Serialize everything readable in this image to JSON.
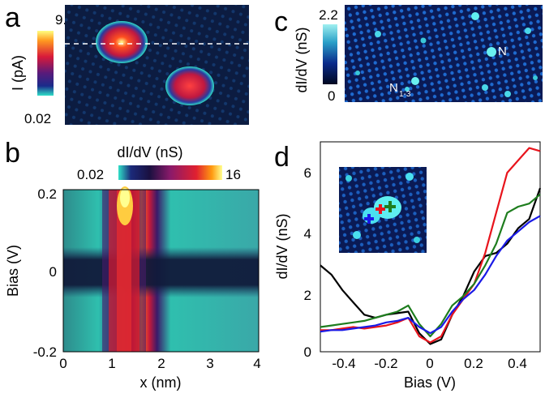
{
  "panels": {
    "a": {
      "label": "a",
      "colorbar": {
        "max": "9.1",
        "min": "0.02",
        "label": "I (pA)"
      }
    },
    "b": {
      "label": "b",
      "colorbar": {
        "title": "dI/dV (nS)",
        "min": "0.02",
        "max": "16"
      },
      "xlabel": "x (nm)",
      "ylabel": "Bias (V)",
      "xticks": [
        "0",
        "1",
        "2",
        "3",
        "4"
      ],
      "yticks": [
        "0.2",
        "0",
        "-0.2"
      ]
    },
    "c": {
      "label": "c",
      "colorbar": {
        "max": "2.2",
        "min": "0",
        "label": "dI/dV (nS)"
      },
      "annotations": {
        "n": "N",
        "n13": "N",
        "n13_sub": "1-3"
      }
    },
    "d": {
      "label": "d",
      "xlabel": "Bias (V)",
      "ylabel": "dI/dV (nS)",
      "xticks": [
        "-0.4",
        "-0.2",
        "0",
        "0.2",
        "0.4"
      ],
      "yticks": [
        "0",
        "2",
        "4",
        "6"
      ]
    }
  },
  "colors": {
    "black_series": "#000000",
    "red_series": "#e8141c",
    "green_series": "#1e7d1e",
    "blue_series": "#1a1ae6"
  },
  "chart_data": {
    "type": "line",
    "xlabel": "Bias (V)",
    "ylabel": "dI/dV (nS)",
    "xlim": [
      -0.5,
      0.5
    ],
    "ylim": [
      0,
      6.8
    ],
    "series": [
      {
        "color": "#000000",
        "x": [
          -0.5,
          -0.45,
          -0.4,
          -0.35,
          -0.3,
          -0.25,
          -0.2,
          -0.15,
          -0.1,
          -0.05,
          0,
          0.05,
          0.1,
          0.15,
          0.2,
          0.25,
          0.3,
          0.35,
          0.4,
          0.45,
          0.5
        ],
        "y": [
          2.8,
          2.5,
          2.0,
          1.6,
          1.2,
          1.1,
          1.2,
          1.25,
          1.3,
          0.6,
          0.25,
          0.4,
          1.2,
          1.8,
          2.6,
          3.1,
          3.2,
          3.5,
          4.0,
          4.3,
          5.3
        ]
      },
      {
        "color": "#e8141c",
        "x": [
          -0.5,
          -0.45,
          -0.4,
          -0.35,
          -0.3,
          -0.25,
          -0.2,
          -0.15,
          -0.1,
          -0.05,
          0,
          0.05,
          0.1,
          0.15,
          0.2,
          0.25,
          0.3,
          0.35,
          0.4,
          0.45,
          0.5
        ],
        "y": [
          0.7,
          0.7,
          0.75,
          0.8,
          0.75,
          0.8,
          0.85,
          0.95,
          1.1,
          0.5,
          0.3,
          0.5,
          1.2,
          1.7,
          2.2,
          3.2,
          4.5,
          5.8,
          6.2,
          6.6,
          6.5
        ]
      },
      {
        "color": "#1e7d1e",
        "x": [
          -0.5,
          -0.45,
          -0.4,
          -0.35,
          -0.3,
          -0.25,
          -0.2,
          -0.15,
          -0.1,
          -0.05,
          0,
          0.05,
          0.1,
          0.15,
          0.2,
          0.25,
          0.3,
          0.35,
          0.4,
          0.45,
          0.5
        ],
        "y": [
          0.8,
          0.85,
          0.9,
          0.95,
          1.0,
          1.1,
          1.2,
          1.3,
          1.5,
          0.9,
          0.5,
          0.9,
          1.5,
          1.8,
          2.2,
          2.8,
          3.5,
          4.5,
          4.7,
          4.8,
          5.1
        ]
      },
      {
        "color": "#1a1ae6",
        "x": [
          -0.5,
          -0.45,
          -0.4,
          -0.35,
          -0.3,
          -0.25,
          -0.2,
          -0.15,
          -0.1,
          -0.05,
          0,
          0.05,
          0.1,
          0.15,
          0.2,
          0.25,
          0.3,
          0.35,
          0.4,
          0.45,
          0.5
        ],
        "y": [
          0.65,
          0.7,
          0.7,
          0.75,
          0.8,
          0.85,
          0.95,
          1.0,
          1.1,
          0.8,
          0.6,
          0.8,
          1.3,
          1.7,
          2.0,
          2.5,
          3.1,
          3.6,
          3.9,
          4.2,
          4.4
        ]
      }
    ]
  }
}
